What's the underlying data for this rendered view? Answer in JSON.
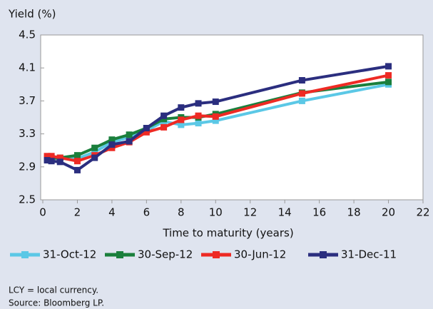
{
  "chart_data": {
    "type": "line",
    "ylabel": "Yield (%)",
    "xlabel": "Time to maturity (years)",
    "xlim": [
      0,
      22
    ],
    "xticks": [
      0,
      2,
      4,
      6,
      8,
      10,
      12,
      14,
      16,
      18,
      20,
      22
    ],
    "ylim": [
      2.5,
      4.5
    ],
    "yticks": [
      2.5,
      2.9,
      3.3,
      3.7,
      4.1,
      4.5
    ],
    "x": [
      0.25,
      0.5,
      1,
      2,
      3,
      4,
      5,
      6,
      7,
      8,
      9,
      10,
      15,
      20
    ],
    "legend": "bottom",
    "series": [
      {
        "name": "31-Oct-12",
        "color": "#5bc8e6",
        "values": [
          3.01,
          3.01,
          3.0,
          3.0,
          3.08,
          3.2,
          3.26,
          3.34,
          3.45,
          3.41,
          3.43,
          3.46,
          3.7,
          3.9
        ]
      },
      {
        "name": "30-Sep-12",
        "color": "#1a7f3c",
        "values": [
          3.0,
          3.0,
          3.01,
          3.04,
          3.13,
          3.23,
          3.29,
          3.37,
          3.48,
          3.5,
          3.5,
          3.54,
          3.8,
          3.93
        ]
      },
      {
        "name": "30-Jun-12",
        "color": "#ee2a24",
        "values": [
          3.03,
          3.03,
          3.01,
          2.97,
          3.04,
          3.13,
          3.2,
          3.32,
          3.38,
          3.47,
          3.52,
          3.51,
          3.79,
          4.01
        ]
      },
      {
        "name": "31-Dec-11",
        "color": "#2b2e7f",
        "values": [
          2.98,
          2.97,
          2.96,
          2.86,
          3.01,
          3.17,
          3.21,
          3.37,
          3.52,
          3.62,
          3.67,
          3.69,
          3.95,
          4.12
        ]
      }
    ],
    "notes": [
      "LCY = local currency.",
      "Source: Bloomberg LP."
    ]
  }
}
